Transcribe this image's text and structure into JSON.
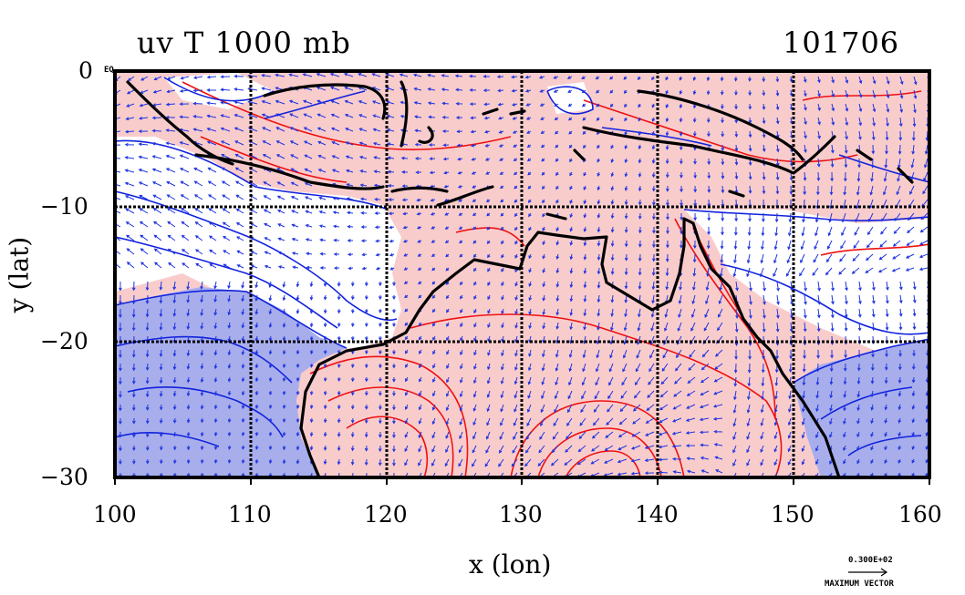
{
  "title_left": "uv T 1000 mb",
  "title_right": "101706",
  "eq_marker": "EQ",
  "xlabel": "x (lon)",
  "ylabel": "y (lat)",
  "xticks": [
    "100",
    "110",
    "120",
    "130",
    "140",
    "150",
    "160"
  ],
  "yticks": [
    "0",
    "−10",
    "−20",
    "−30"
  ],
  "vector_scale_value": "0.300E+02",
  "vector_scale_label": "MAXIMUM VECTOR",
  "colors": {
    "warm_fill": "#f9cccc",
    "cold_fill": "#a8aeec",
    "warm_contour": "#ee1111",
    "cold_contour": "#1122dd",
    "vector": "#1f35e0",
    "coast": "#000000"
  },
  "chart_data": {
    "type": "map",
    "variable": "uv T",
    "level": "1000 mb",
    "xlim": [
      100,
      160
    ],
    "ylim": [
      -30,
      0
    ],
    "grid": true,
    "grid_x": [
      110,
      120,
      130,
      140,
      150
    ],
    "grid_y": [
      -10,
      -20
    ]
  }
}
